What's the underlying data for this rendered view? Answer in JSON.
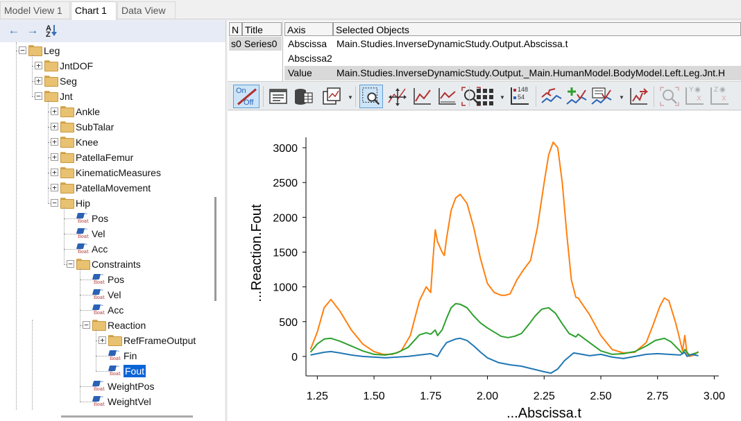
{
  "tabs": [
    {
      "label": "Model View 1",
      "active": false
    },
    {
      "label": "Chart 1",
      "active": true
    },
    {
      "label": "Data View",
      "active": false
    }
  ],
  "tree_toolbar": {
    "back_icon": "arrow-left-icon",
    "forward_icon": "arrow-right-icon",
    "sort_icon": "sort-az-icon",
    "sort_top": "A",
    "sort_bottom": "Z"
  },
  "tree": [
    {
      "label": "Leg",
      "level": 0,
      "type": "folder",
      "expander": "−"
    },
    {
      "label": "JntDOF",
      "level": 1,
      "type": "folder",
      "expander": "+"
    },
    {
      "label": "Seg",
      "level": 1,
      "type": "folder",
      "expander": "+"
    },
    {
      "label": "Jnt",
      "level": 1,
      "type": "folder",
      "expander": "−"
    },
    {
      "label": "Ankle",
      "level": 2,
      "type": "folder",
      "expander": "+"
    },
    {
      "label": "SubTalar",
      "level": 2,
      "type": "folder",
      "expander": "+"
    },
    {
      "label": "Knee",
      "level": 2,
      "type": "folder",
      "expander": "+"
    },
    {
      "label": "PatellaFemur",
      "level": 2,
      "type": "folder",
      "expander": "+"
    },
    {
      "label": "KinematicMeasures",
      "level": 2,
      "type": "folder",
      "expander": "+"
    },
    {
      "label": "PatellaMovement",
      "level": 2,
      "type": "folder",
      "expander": "+"
    },
    {
      "label": "Hip",
      "level": 2,
      "type": "folder",
      "expander": "−"
    },
    {
      "label": "Pos",
      "level": 3,
      "type": "float"
    },
    {
      "label": "Vel",
      "level": 3,
      "type": "float"
    },
    {
      "label": "Acc",
      "level": 3,
      "type": "float"
    },
    {
      "label": "Constraints",
      "level": 3,
      "type": "folder",
      "expander": "−"
    },
    {
      "label": "Pos",
      "level": 4,
      "type": "float"
    },
    {
      "label": "Vel",
      "level": 4,
      "type": "float"
    },
    {
      "label": "Acc",
      "level": 4,
      "type": "float"
    },
    {
      "label": "Reaction",
      "level": 4,
      "type": "folder",
      "expander": "−"
    },
    {
      "label": "RefFrameOutput",
      "level": 5,
      "type": "folder",
      "expander": "+"
    },
    {
      "label": "Fin",
      "level": 5,
      "type": "float"
    },
    {
      "label": "Fout",
      "level": 5,
      "type": "float",
      "selected": true
    },
    {
      "label": "WeightPos",
      "level": 4,
      "type": "float"
    },
    {
      "label": "WeightVel",
      "level": 4,
      "type": "float"
    }
  ],
  "float_icon": {
    "name": "float-variable-icon",
    "text": "float",
    "squiggle": "~"
  },
  "series_table": {
    "headers": [
      "N",
      "Title"
    ],
    "rows": [
      {
        "n": "s0",
        "title": "Series0"
      }
    ]
  },
  "axis_table": {
    "headers": [
      "Axis",
      "Selected Objects"
    ],
    "rows": [
      {
        "axis": "Abscissa",
        "object": "Main.Studies.InverseDynamicStudy.Output.Abscissa.t"
      },
      {
        "axis": "Abscissa2",
        "object": ""
      },
      {
        "axis": "Value",
        "object": "Main.Studies.InverseDynamicStudy.Output._Main.HumanModel.BodyModel.Left.Leg.Jnt.H"
      }
    ]
  },
  "chart_toolbar": {
    "onoff_on": "On",
    "onoff_off": "Off",
    "numbers_top": "148",
    "numbers_bottom": "54",
    "buttons": [
      "properties-icon",
      "database-icon",
      "chart-type-icon",
      "zoom-box-icon",
      "pan-icon",
      "auto-scale-icon",
      "fit-icon",
      "zoom-icon",
      "grid-icon",
      "data-labels-icon",
      "series-edit-icon",
      "add-series-icon",
      "series-style-icon",
      "export-icon",
      "zoom-disabled-icon",
      "y-axis-view-icon",
      "z-axis-view-icon"
    ],
    "axis_y": "Y",
    "axis_z": "Z",
    "axis_x": "X"
  },
  "chart_data": {
    "type": "line",
    "xlabel": "...Abscissa.t",
    "ylabel": "...Reaction.Fout",
    "xlim": [
      1.2,
      3.02
    ],
    "ylim": [
      -280,
      3150
    ],
    "xticks": [
      1.25,
      1.5,
      1.75,
      2.0,
      2.25,
      2.5,
      2.75,
      3.0
    ],
    "xtick_labels": [
      "1.25",
      "1.50",
      "1.75",
      "2.00",
      "2.25",
      "2.50",
      "2.75",
      "3.00"
    ],
    "yticks": [
      0,
      500,
      1000,
      1500,
      2000,
      2500,
      3000
    ],
    "ytick_labels": [
      "0",
      "500",
      "1000",
      "1500",
      "2000",
      "2500",
      "3000"
    ],
    "grid": false,
    "series": [
      {
        "color": "#ff7f0e",
        "x": [
          1.22,
          1.25,
          1.28,
          1.31,
          1.35,
          1.4,
          1.45,
          1.5,
          1.54,
          1.58,
          1.62,
          1.66,
          1.7,
          1.73,
          1.75,
          1.76,
          1.77,
          1.78,
          1.8,
          1.81,
          1.82,
          1.84,
          1.86,
          1.88,
          1.91,
          1.94,
          1.97,
          2.0,
          2.03,
          2.06,
          2.08,
          2.1,
          2.13,
          2.16,
          2.19,
          2.22,
          2.25,
          2.27,
          2.29,
          2.31,
          2.33,
          2.35,
          2.37,
          2.39,
          2.4,
          2.45,
          2.5,
          2.55,
          2.6,
          2.65,
          2.7,
          2.73,
          2.76,
          2.78,
          2.8,
          2.83,
          2.85,
          2.86,
          2.87,
          2.88,
          2.89,
          2.91,
          2.93
        ],
        "y": [
          100,
          350,
          700,
          820,
          650,
          380,
          180,
          70,
          30,
          30,
          80,
          300,
          800,
          1000,
          920,
          1400,
          1820,
          1650,
          1500,
          1450,
          1700,
          2100,
          2280,
          2330,
          2200,
          1850,
          1400,
          1050,
          920,
          880,
          880,
          900,
          1100,
          1250,
          1380,
          1850,
          2500,
          2900,
          3080,
          3000,
          2500,
          1750,
          1100,
          850,
          840,
          600,
          300,
          100,
          50,
          60,
          200,
          450,
          720,
          840,
          800,
          480,
          220,
          80,
          300,
          40,
          0,
          20,
          70
        ]
      },
      {
        "color": "#2ca02c",
        "x": [
          1.22,
          1.25,
          1.28,
          1.31,
          1.35,
          1.4,
          1.45,
          1.5,
          1.55,
          1.6,
          1.65,
          1.7,
          1.73,
          1.75,
          1.77,
          1.78,
          1.8,
          1.82,
          1.84,
          1.86,
          1.88,
          1.91,
          1.94,
          1.97,
          2.0,
          2.03,
          2.06,
          2.09,
          2.12,
          2.15,
          2.18,
          2.21,
          2.24,
          2.27,
          2.3,
          2.33,
          2.36,
          2.39,
          2.4,
          2.45,
          2.5,
          2.55,
          2.6,
          2.65,
          2.7,
          2.74,
          2.78,
          2.81,
          2.84,
          2.86,
          2.87,
          2.89,
          2.93
        ],
        "y": [
          60,
          180,
          250,
          260,
          220,
          150,
          80,
          30,
          20,
          50,
          130,
          310,
          340,
          320,
          380,
          300,
          380,
          550,
          700,
          760,
          750,
          700,
          580,
          480,
          410,
          350,
          290,
          270,
          290,
          330,
          450,
          580,
          680,
          700,
          620,
          470,
          330,
          280,
          320,
          200,
          80,
          30,
          40,
          70,
          150,
          230,
          260,
          210,
          110,
          40,
          100,
          20,
          60
        ]
      },
      {
        "color": "#1f77b4",
        "x": [
          1.22,
          1.25,
          1.28,
          1.31,
          1.35,
          1.4,
          1.45,
          1.5,
          1.55,
          1.6,
          1.65,
          1.7,
          1.75,
          1.78,
          1.8,
          1.82,
          1.86,
          1.88,
          1.91,
          1.94,
          1.97,
          2.0,
          2.05,
          2.1,
          2.15,
          2.2,
          2.25,
          2.28,
          2.31,
          2.34,
          2.38,
          2.4,
          2.45,
          2.5,
          2.55,
          2.6,
          2.65,
          2.7,
          2.75,
          2.8,
          2.85,
          2.87,
          2.88,
          2.9,
          2.93
        ],
        "y": [
          20,
          40,
          60,
          70,
          50,
          20,
          0,
          -10,
          -20,
          -10,
          0,
          20,
          40,
          0,
          110,
          200,
          250,
          260,
          230,
          150,
          60,
          -20,
          -90,
          -120,
          -140,
          -180,
          -220,
          -240,
          -180,
          -60,
          50,
          40,
          10,
          30,
          -10,
          -30,
          0,
          30,
          40,
          30,
          20,
          60,
          0,
          30,
          10
        ]
      }
    ]
  }
}
